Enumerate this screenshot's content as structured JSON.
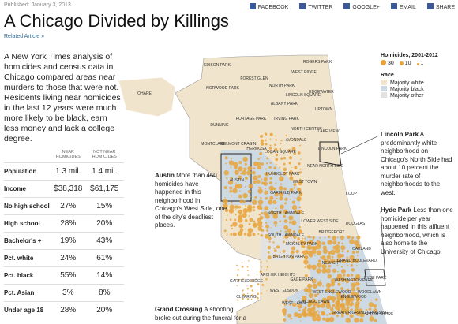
{
  "header": {
    "published": "Published: January 3, 2013",
    "share": [
      "FACEBOOK",
      "TWITTER",
      "GOOGLE+",
      "EMAIL",
      "SHARE"
    ],
    "title": "A Chicago Divided by Killings",
    "related": "Related Article »"
  },
  "intro": "A New York Times analysis of homicides and census data in Chicago compared areas near murders to those that were not. Residents living near homicides in the last 12 years were much more likely to be black, earn less money and lack a college degree.",
  "table": {
    "columns": [
      "NEAR HOMICIDES",
      "NOT NEAR HOMICIDES"
    ],
    "rows": [
      [
        "Population",
        "1.3 mil.",
        "1.4 mil."
      ],
      [
        "Income",
        "$38,318",
        "$61,175"
      ],
      [
        "No high school",
        "27%",
        "15%"
      ],
      [
        "High school",
        "28%",
        "20%"
      ],
      [
        "Bachelor's +",
        "19%",
        "43%"
      ],
      [
        "Pct. white",
        "24%",
        "61%"
      ],
      [
        "Pct. black",
        "55%",
        "14%"
      ],
      [
        "Pct. Asian",
        "3%",
        "8%"
      ],
      [
        "Under age 18",
        "28%",
        "20%"
      ]
    ]
  },
  "legend": {
    "homicides_title": "Homicides, 2001-2012",
    "sizes": [
      "30",
      "10",
      "1"
    ],
    "race_title": "Race",
    "race": [
      "Majority white",
      "Majority black",
      "Majority other"
    ]
  },
  "annotations": [
    {
      "name": "Lincoln Park",
      "text": "A predominantly white neighborhood on Chicago's North Side had about 10 percent the murder rate of neighborhoods to the west."
    },
    {
      "name": "Austin",
      "text": "More than 450 homicides have happened in this neighborhood in Chicago's West Side, one of the city's deadliest places."
    },
    {
      "name": "Hyde Park",
      "text": "Less than one homicide per year happened in this affluent neighborhood, which is also home to the University of Chicago."
    },
    {
      "name": "Grand Crossing",
      "text": "A shooting broke out during the funeral for a"
    }
  ],
  "map_labels": [
    "OHARE",
    "EDISON PARK",
    "NORWOOD PARK",
    "FOREST GLEN",
    "ROGERS PARK",
    "WEST RIDGE",
    "EDGEWATER",
    "UPTOWN",
    "LINCOLN SQUARE",
    "NORTH PARK",
    "ALBANY PARK",
    "PORTAGE PARK",
    "IRVING PARK",
    "NORTH CENTER",
    "LAKE VIEW",
    "DUNNING",
    "MONTCLARE",
    "BELMONT CRAGIN",
    "HERMOSA",
    "AVONDALE",
    "LOGAN SQUARE",
    "LINCOLN PARK",
    "AUSTIN",
    "HUMBOLDT PARK",
    "WEST TOWN",
    "NEAR NORTH SIDE",
    "GARFIELD PARK",
    "LOOP",
    "NORTH LAWNDALE",
    "LOWER WEST SIDE",
    "SOUTH LAWNDALE",
    "BRIDGEPORT",
    "MCKINLEY PARK",
    "DOUGLAS",
    "OAKLAND",
    "BRIGHTON PARK",
    "ARCHER HEIGHTS",
    "GAGE PARK",
    "NEW CITY",
    "GRAND BOULEVARD",
    "WASHINGTON PARK",
    "HYDE PARK",
    "GARFIELD RIDGE",
    "WEST ELSDON",
    "CLEARING",
    "WEST LAWN",
    "CHICAGO LAWN",
    "WEST ENGLEWOOD",
    "ENGLEWOOD",
    "WOODLAWN",
    "GREATER GRAND CROSSING",
    "SOUTH SHORE"
  ]
}
